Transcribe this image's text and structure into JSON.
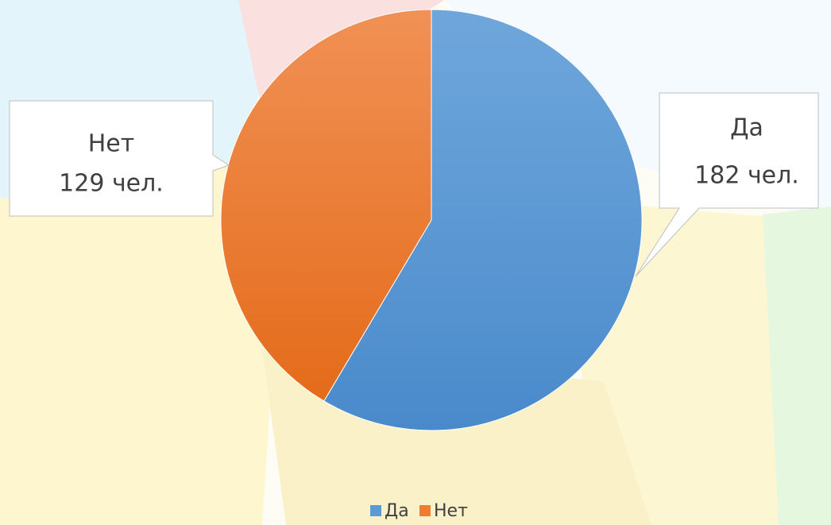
{
  "chart_data": {
    "type": "pie",
    "categories": [
      "Да",
      "Нет"
    ],
    "values": [
      182,
      129
    ],
    "value_labels": [
      "182 чел.",
      "129 чел."
    ],
    "colors": [
      "#5b9bd5",
      "#ed7d31"
    ],
    "legend": "bottom"
  }
}
